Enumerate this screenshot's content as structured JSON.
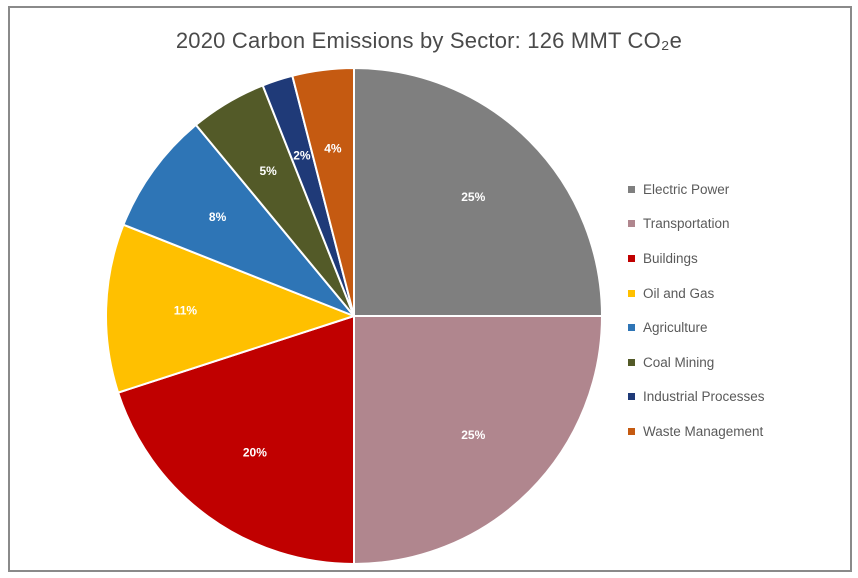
{
  "chart_data": {
    "type": "pie",
    "title": "2020 Carbon Emissions by Sector: 126 MMT CO₂e",
    "slices": [
      {
        "label": "Electric Power",
        "value": 25,
        "display": "25%",
        "color": "#7f7f7f"
      },
      {
        "label": "Transportation",
        "value": 25,
        "display": "25%",
        "color": "#b0868e"
      },
      {
        "label": "Buildings",
        "value": 20,
        "display": "20%",
        "color": "#c00000"
      },
      {
        "label": "Oil and Gas",
        "value": 11,
        "display": "11%",
        "color": "#ffc000"
      },
      {
        "label": "Agriculture",
        "value": 8,
        "display": "8%",
        "color": "#2e75b6"
      },
      {
        "label": "Coal Mining",
        "value": 5,
        "display": "5%",
        "color": "#535a28"
      },
      {
        "label": "Industrial Processes",
        "value": 2,
        "display": "2%",
        "color": "#1f3a78"
      },
      {
        "label": "Waste Management",
        "value": 4,
        "display": "4%",
        "color": "#c55a11"
      }
    ],
    "legend_position": "right"
  }
}
